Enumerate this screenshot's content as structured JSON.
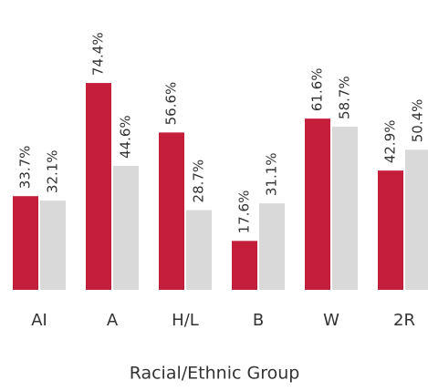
{
  "chart_data": {
    "type": "bar",
    "x_label": "Racial/Ethnic Group",
    "categories": [
      "AI",
      "A",
      "H/L",
      "B",
      "W",
      "2R"
    ],
    "series": [
      {
        "color": "#c41e3a",
        "values": [
          33.7,
          74.4,
          56.6,
          17.6,
          61.6,
          42.9
        ],
        "value_labels": [
          "33.7%",
          "74.4%",
          "56.6%",
          "17.6%",
          "61.6%",
          "42.9%"
        ]
      },
      {
        "color": "#d9d9d9",
        "values": [
          32.1,
          44.6,
          28.7,
          31.1,
          58.7,
          50.4
        ],
        "value_labels": [
          "32.1%",
          "44.6%",
          "28.7%",
          "31.1%",
          "58.7%",
          "50.4%"
        ]
      }
    ]
  }
}
